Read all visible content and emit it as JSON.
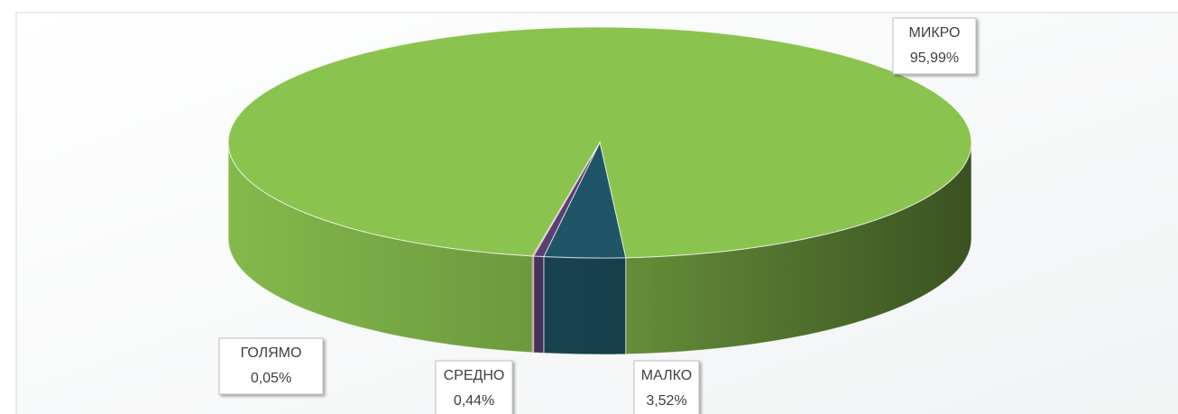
{
  "chart_data": {
    "type": "pie3d",
    "categories": [
      "МИКРО",
      "МАЛКО",
      "СРЕДНО",
      "ГОЛЯМО"
    ],
    "values": [
      95.99,
      3.52,
      0.44,
      0.05
    ],
    "value_labels": [
      "95,99%",
      "3,52%",
      "0,44%",
      "0,05%"
    ],
    "colors": [
      "#8bc34f",
      "#1f5566",
      "#5b3f72",
      "#8c2b2b"
    ]
  }
}
